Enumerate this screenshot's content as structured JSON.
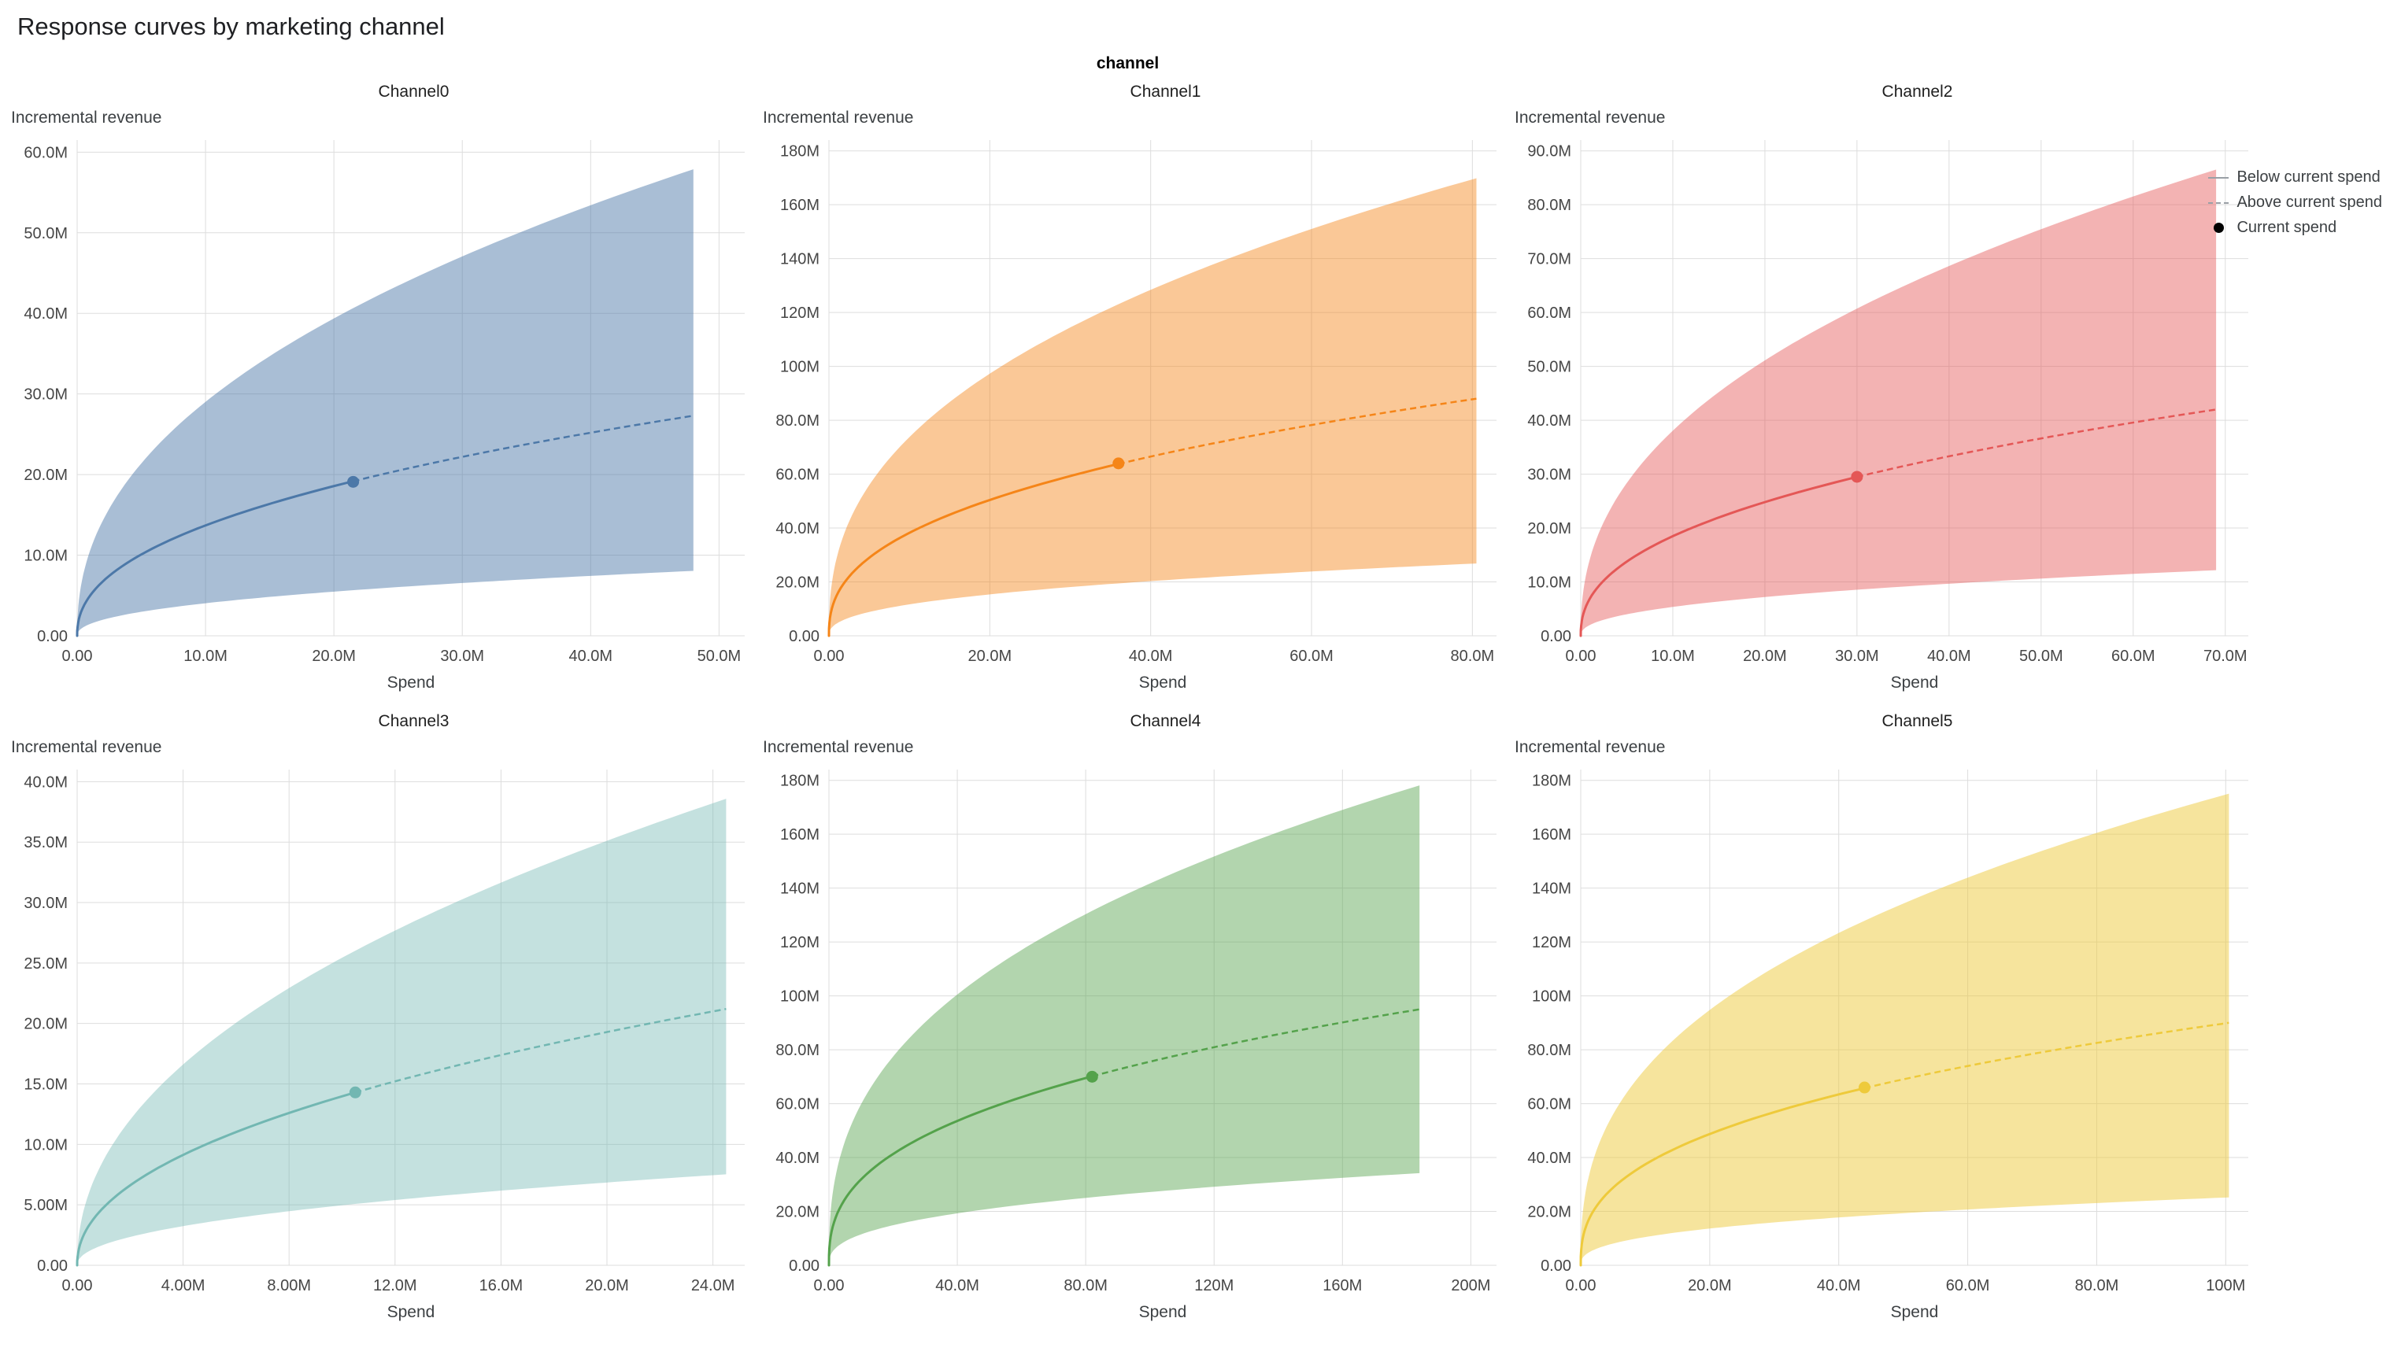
{
  "title": "Response curves by marketing channel",
  "facet_label": "channel",
  "legend": {
    "items": [
      {
        "label": "Below current spend",
        "symbol": "solid-line"
      },
      {
        "label": "Above current spend",
        "symbol": "dashed-line"
      },
      {
        "label": "Current spend",
        "symbol": "dot"
      }
    ]
  },
  "chart_data": [
    {
      "type": "line",
      "title": "Channel0",
      "xlabel": "Spend",
      "ylabel": "Incremental revenue",
      "color": "#4C78A8",
      "band_opacity": 0.48,
      "units": "millions",
      "x_ticks": {
        "values": [
          0,
          10,
          20,
          30,
          40,
          50
        ],
        "labels": [
          "0.00",
          "10.0M",
          "20.0M",
          "30.0M",
          "40.0M",
          "50.0M"
        ]
      },
      "y_ticks": {
        "values": [
          0,
          10,
          20,
          30,
          40,
          50,
          60
        ],
        "labels": [
          "0.00",
          "10.0M",
          "20.0M",
          "30.0M",
          "40.0M",
          "50.0M",
          "60.0M"
        ]
      },
      "x_domain_max": 52,
      "y_domain_max": 61.5,
      "curve": {
        "shape": "power",
        "exponent": 0.44,
        "x_end": 48,
        "y_end": 27.3
      },
      "current_spend": {
        "x": 21.5,
        "y": 19.1
      },
      "band": {
        "upper_ratio": 2.12,
        "lower_ratio": 0.295,
        "upper_at_end": 58,
        "lower_at_end": 8
      }
    },
    {
      "type": "line",
      "title": "Channel1",
      "xlabel": "Spend",
      "ylabel": "Incremental revenue",
      "color": "#F58518",
      "band_opacity": 0.45,
      "units": "millions",
      "x_ticks": {
        "values": [
          0,
          20,
          40,
          60,
          80
        ],
        "labels": [
          "0.00",
          "20.0M",
          "40.0M",
          "60.0M",
          "80.0M"
        ]
      },
      "y_ticks": {
        "values": [
          0,
          20,
          40,
          60,
          80,
          100,
          120,
          140,
          160,
          180
        ],
        "labels": [
          "0.00",
          "20.0M",
          "40.0M",
          "60.0M",
          "80.0M",
          "100M",
          "120M",
          "140M",
          "160M",
          "180M"
        ]
      },
      "x_domain_max": 83,
      "y_domain_max": 184,
      "curve": {
        "shape": "power",
        "exponent": 0.4,
        "x_end": 80.5,
        "y_end": 88
      },
      "current_spend": {
        "x": 36,
        "y": 64
      },
      "band": {
        "upper_ratio": 1.93,
        "lower_ratio": 0.305,
        "upper_at_end": 170,
        "lower_at_end": 27
      }
    },
    {
      "type": "line",
      "title": "Channel2",
      "xlabel": "Spend",
      "ylabel": "Incremental revenue",
      "color": "#E45756",
      "band_opacity": 0.45,
      "units": "millions",
      "x_ticks": {
        "values": [
          0,
          10,
          20,
          30,
          40,
          50,
          60,
          70
        ],
        "labels": [
          "0.00",
          "10.0M",
          "20.0M",
          "30.0M",
          "40.0M",
          "50.0M",
          "60.0M",
          "70.0M"
        ]
      },
      "y_ticks": {
        "values": [
          0,
          10,
          20,
          30,
          40,
          50,
          60,
          70,
          80,
          90
        ],
        "labels": [
          "0.00",
          "10.0M",
          "20.0M",
          "30.0M",
          "40.0M",
          "50.0M",
          "60.0M",
          "70.0M",
          "80.0M",
          "90.0M"
        ]
      },
      "x_domain_max": 72.5,
      "y_domain_max": 92,
      "curve": {
        "shape": "power",
        "exponent": 0.425,
        "x_end": 69,
        "y_end": 42
      },
      "current_spend": {
        "x": 30,
        "y": 29.5
      },
      "band": {
        "upper_ratio": 2.06,
        "lower_ratio": 0.29,
        "upper_at_end": 86.5,
        "lower_at_end": 12
      }
    },
    {
      "type": "line",
      "title": "Channel3",
      "xlabel": "Spend",
      "ylabel": "Incremental revenue",
      "color": "#72B7B2",
      "band_opacity": 0.42,
      "units": "millions",
      "x_ticks": {
        "values": [
          0,
          4,
          8,
          12,
          16,
          20,
          24
        ],
        "labels": [
          "0.00",
          "4.00M",
          "8.00M",
          "12.0M",
          "16.0M",
          "20.0M",
          "24.0M"
        ]
      },
      "y_ticks": {
        "values": [
          0,
          5,
          10,
          15,
          20,
          25,
          30,
          35,
          40
        ],
        "labels": [
          "0.00",
          "5.00M",
          "10.0M",
          "15.0M",
          "20.0M",
          "25.0M",
          "30.0M",
          "35.0M",
          "40.0M"
        ]
      },
      "x_domain_max": 25.2,
      "y_domain_max": 41,
      "curve": {
        "shape": "power",
        "exponent": 0.465,
        "x_end": 24.5,
        "y_end": 21.2
      },
      "current_spend": {
        "x": 10.5,
        "y": 14.3
      },
      "band": {
        "upper_ratio": 1.82,
        "lower_ratio": 0.355,
        "upper_at_end": 38.6,
        "lower_at_end": 7.5
      }
    },
    {
      "type": "line",
      "title": "Channel4",
      "xlabel": "Spend",
      "ylabel": "Incremental revenue",
      "color": "#54A24B",
      "band_opacity": 0.45,
      "units": "millions",
      "x_ticks": {
        "values": [
          0,
          40,
          80,
          120,
          160,
          200
        ],
        "labels": [
          "0.00",
          "40.0M",
          "80.0M",
          "120M",
          "160M",
          "200M"
        ]
      },
      "y_ticks": {
        "values": [
          0,
          20,
          40,
          60,
          80,
          100,
          120,
          140,
          160,
          180
        ],
        "labels": [
          "0.00",
          "20.0M",
          "40.0M",
          "60.0M",
          "80.0M",
          "100M",
          "120M",
          "140M",
          "160M",
          "180M"
        ]
      },
      "x_domain_max": 208,
      "y_domain_max": 184,
      "curve": {
        "shape": "power",
        "exponent": 0.375,
        "x_end": 184,
        "y_end": 95
      },
      "current_spend": {
        "x": 82,
        "y": 70
      },
      "band": {
        "upper_ratio": 1.875,
        "lower_ratio": 0.36,
        "upper_at_end": 178,
        "lower_at_end": 34
      }
    },
    {
      "type": "line",
      "title": "Channel5",
      "xlabel": "Spend",
      "ylabel": "Incremental revenue",
      "color": "#EECA3B",
      "band_opacity": 0.5,
      "units": "millions",
      "x_ticks": {
        "values": [
          0,
          20,
          40,
          60,
          80,
          100
        ],
        "labels": [
          "0.00",
          "20.0M",
          "40.0M",
          "60.0M",
          "80.0M",
          "100M"
        ]
      },
      "y_ticks": {
        "values": [
          0,
          20,
          40,
          60,
          80,
          100,
          120,
          140,
          160,
          180
        ],
        "labels": [
          "0.00",
          "20.0M",
          "40.0M",
          "60.0M",
          "80.0M",
          "100M",
          "120M",
          "140M",
          "160M",
          "180M"
        ]
      },
      "x_domain_max": 103.5,
      "y_domain_max": 184,
      "curve": {
        "shape": "power",
        "exponent": 0.38,
        "x_end": 100.5,
        "y_end": 90
      },
      "current_spend": {
        "x": 44,
        "y": 66
      },
      "band": {
        "upper_ratio": 1.945,
        "lower_ratio": 0.28,
        "upper_at_end": 175,
        "lower_at_end": 25
      }
    }
  ]
}
